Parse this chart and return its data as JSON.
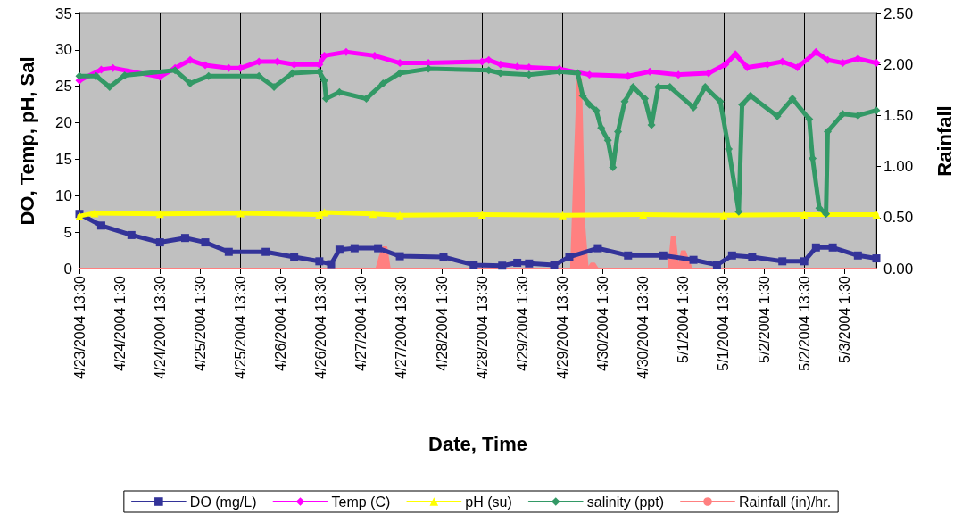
{
  "chart_data": {
    "type": "line",
    "xlabel": "Date, Time",
    "ylabel": "DO, Temp, pH, Sal",
    "y2label": "Rainfall",
    "xlim": [
      "2004-04-23T13:30",
      "2004-05-03T11:00"
    ],
    "xticks": [
      {
        "value": "2004-04-23T13:30",
        "label": "4/23/2004 13:30"
      },
      {
        "value": "2004-04-24T01:30",
        "label": "4/24/2004 1:30"
      },
      {
        "value": "2004-04-24T13:30",
        "label": "4/24/2004 13:30"
      },
      {
        "value": "2004-04-25T01:30",
        "label": "4/25/2004 1:30"
      },
      {
        "value": "2004-04-25T13:30",
        "label": "4/25/2004 13:30"
      },
      {
        "value": "2004-04-26T01:30",
        "label": "4/26/2004 1:30"
      },
      {
        "value": "2004-04-26T13:30",
        "label": "4/26/2004 13:30"
      },
      {
        "value": "2004-04-27T01:30",
        "label": "4/27/2004 1:30"
      },
      {
        "value": "2004-04-27T13:30",
        "label": "4/27/2004 13:30"
      },
      {
        "value": "2004-04-28T01:30",
        "label": "4/28/2004 1:30"
      },
      {
        "value": "2004-04-28T13:30",
        "label": "4/28/2004 13:30"
      },
      {
        "value": "2004-04-29T01:30",
        "label": "4/29/2004 1:30"
      },
      {
        "value": "2004-04-29T13:30",
        "label": "4/29/2004 13:30"
      },
      {
        "value": "2004-04-30T01:30",
        "label": "4/30/2004 1:30"
      },
      {
        "value": "2004-04-30T13:30",
        "label": "4/30/2004 13:30"
      },
      {
        "value": "2004-05-01T01:30",
        "label": "5/1/2004 1:30"
      },
      {
        "value": "2004-05-01T13:30",
        "label": "5/1/2004 13:30"
      },
      {
        "value": "2004-05-02T01:30",
        "label": "5/2/2004 1:30"
      },
      {
        "value": "2004-05-02T13:30",
        "label": "5/2/2004 13:30"
      },
      {
        "value": "2004-05-03T01:30",
        "label": "5/3/2004 1:30"
      }
    ],
    "ylim": [
      0,
      35
    ],
    "yticks": [
      0,
      5,
      10,
      15,
      20,
      25,
      30,
      35
    ],
    "y2lim": [
      0,
      2.5
    ],
    "y2ticks": [
      {
        "value": 0,
        "label": "0.00"
      },
      {
        "value": 0.5,
        "label": "0.50"
      },
      {
        "value": 1,
        "label": "1.00"
      },
      {
        "value": 1.5,
        "label": "1.50"
      },
      {
        "value": 2,
        "label": "2.00"
      },
      {
        "value": 2.5,
        "label": "2.50"
      }
    ],
    "grid": "x",
    "legend": "bottom",
    "series": [
      {
        "name": "DO (mg/L)",
        "color": "#333399",
        "marker": "square",
        "x": [
          "2004-04-23T13:30",
          "2004-04-23T20:00",
          "2004-04-24T05:00",
          "2004-04-24T13:30",
          "2004-04-24T21:00",
          "2004-04-25T03:00",
          "2004-04-25T10:00",
          "2004-04-25T21:00",
          "2004-04-26T05:30",
          "2004-04-26T13:00",
          "2004-04-26T16:30",
          "2004-04-26T19:00",
          "2004-04-26T23:30",
          "2004-04-27T06:30",
          "2004-04-27T13:00",
          "2004-04-28T02:00",
          "2004-04-28T11:00",
          "2004-04-28T19:30",
          "2004-04-29T00:00",
          "2004-04-29T03:30",
          "2004-04-29T11:00",
          "2004-04-29T15:30",
          "2004-04-30T00:00",
          "2004-04-30T09:00",
          "2004-04-30T19:30",
          "2004-05-01T04:30",
          "2004-05-01T11:30",
          "2004-05-01T16:00",
          "2004-05-01T22:00",
          "2004-05-02T07:00",
          "2004-05-02T13:30",
          "2004-05-02T17:00",
          "2004-05-02T22:00",
          "2004-05-03T05:30",
          "2004-05-03T11:00"
        ],
        "values": [
          7.5,
          5.9,
          4.6,
          3.6,
          4.2,
          3.6,
          2.3,
          2.3,
          1.6,
          1.0,
          0.6,
          2.6,
          2.8,
          2.8,
          1.7,
          1.6,
          0.5,
          0.4,
          0.8,
          0.7,
          0.5,
          1.6,
          2.8,
          1.8,
          1.8,
          1.2,
          0.5,
          1.8,
          1.6,
          1.0,
          1.0,
          2.9,
          2.9,
          1.8,
          1.4
        ]
      },
      {
        "name": "Temp (C)",
        "color": "#ff00ff",
        "marker": "diamond",
        "x": [
          "2004-04-23T13:30",
          "2004-04-23T20:00",
          "2004-04-23T23:30",
          "2004-04-24T13:30",
          "2004-04-24T18:00",
          "2004-04-24T22:30",
          "2004-04-25T03:00",
          "2004-04-25T10:00",
          "2004-04-25T13:30",
          "2004-04-25T19:00",
          "2004-04-26T00:30",
          "2004-04-26T05:30",
          "2004-04-26T13:00",
          "2004-04-26T14:30",
          "2004-04-26T21:00",
          "2004-04-27T05:30",
          "2004-04-27T13:00",
          "2004-04-27T21:30",
          "2004-04-28T13:30",
          "2004-04-28T15:30",
          "2004-04-28T19:00",
          "2004-04-29T00:00",
          "2004-04-29T03:30",
          "2004-04-29T12:30",
          "2004-04-29T21:30",
          "2004-04-30T09:00",
          "2004-04-30T15:30",
          "2004-05-01T00:00",
          "2004-05-01T09:00",
          "2004-05-01T14:00",
          "2004-05-01T17:00",
          "2004-05-01T20:30",
          "2004-05-02T02:30",
          "2004-05-02T07:00",
          "2004-05-02T11:30",
          "2004-05-02T17:00",
          "2004-05-02T20:30",
          "2004-05-03T01:00",
          "2004-05-03T05:30",
          "2004-05-03T11:00"
        ],
        "values": [
          25.8,
          27.3,
          27.5,
          26.3,
          27.5,
          28.6,
          27.9,
          27.5,
          27.5,
          28.4,
          28.4,
          28.0,
          28.0,
          29.2,
          29.7,
          29.2,
          28.2,
          28.2,
          28.4,
          28.6,
          28.0,
          27.7,
          27.6,
          27.4,
          26.6,
          26.4,
          27.0,
          26.6,
          26.8,
          28.0,
          29.4,
          27.6,
          28.0,
          28.4,
          27.6,
          29.7,
          28.6,
          28.2,
          28.8,
          28.2
        ]
      },
      {
        "name": "pH (su)",
        "color": "#ffff00",
        "marker": "triangle",
        "x": [
          "2004-04-23T13:30",
          "2004-04-23T18:00",
          "2004-04-24T13:30",
          "2004-04-25T13:30",
          "2004-04-26T13:00",
          "2004-04-26T14:30",
          "2004-04-27T05:00",
          "2004-04-27T13:00",
          "2004-04-28T13:30",
          "2004-04-29T13:30",
          "2004-04-30T13:30",
          "2004-05-01T13:30",
          "2004-05-02T13:30",
          "2004-05-03T11:00"
        ],
        "values": [
          7.2,
          7.6,
          7.5,
          7.6,
          7.4,
          7.7,
          7.5,
          7.3,
          7.4,
          7.3,
          7.4,
          7.3,
          7.4,
          7.4
        ]
      },
      {
        "name": "salinity (ppt)",
        "color": "#339966",
        "marker": "diamond",
        "x": [
          "2004-04-23T13:30",
          "2004-04-23T18:30",
          "2004-04-23T22:30",
          "2004-04-24T03:00",
          "2004-04-24T18:00",
          "2004-04-24T22:30",
          "2004-04-25T04:00",
          "2004-04-25T19:00",
          "2004-04-25T23:30",
          "2004-04-26T05:00",
          "2004-04-26T13:00",
          "2004-04-26T14:30",
          "2004-04-26T15:00",
          "2004-04-26T19:00",
          "2004-04-27T03:00",
          "2004-04-27T08:00",
          "2004-04-27T13:00",
          "2004-04-27T21:30",
          "2004-04-28T15:30",
          "2004-04-28T19:00",
          "2004-04-29T03:30",
          "2004-04-29T12:30",
          "2004-04-29T18:00",
          "2004-04-29T19:30",
          "2004-04-29T21:30",
          "2004-04-29T23:30",
          "2004-04-30T01:00",
          "2004-04-30T03:00",
          "2004-04-30T04:30",
          "2004-04-30T06:00",
          "2004-04-30T08:00",
          "2004-04-30T10:30",
          "2004-04-30T14:00",
          "2004-04-30T16:00",
          "2004-04-30T18:00",
          "2004-04-30T21:30",
          "2004-05-01T04:30",
          "2004-05-01T08:00",
          "2004-05-01T12:30",
          "2004-05-01T15:00",
          "2004-05-01T18:00",
          "2004-05-01T19:00",
          "2004-05-01T21:30",
          "2004-05-02T05:30",
          "2004-05-02T10:00",
          "2004-05-02T15:00",
          "2004-05-02T16:00",
          "2004-05-02T18:00",
          "2004-05-02T20:00",
          "2004-05-02T20:30",
          "2004-05-03T01:00",
          "2004-05-03T05:30",
          "2004-05-03T11:00"
        ],
        "values": [
          26.4,
          26.4,
          24.9,
          26.5,
          27.2,
          25.4,
          26.4,
          26.4,
          24.9,
          26.8,
          27.0,
          25.8,
          23.3,
          24.2,
          23.3,
          25.4,
          26.8,
          27.4,
          27.2,
          26.8,
          26.6,
          27.0,
          26.8,
          23.7,
          22.5,
          21.7,
          19.3,
          17.6,
          13.9,
          18.8,
          22.9,
          24.9,
          23.3,
          19.7,
          24.9,
          24.9,
          22.1,
          24.9,
          22.9,
          16.4,
          7.8,
          22.5,
          23.7,
          20.9,
          23.3,
          20.5,
          15.1,
          8.3,
          7.5,
          18.8,
          21.2,
          21.0,
          21.7
        ]
      },
      {
        "name": "Rainfall (in)/hr.",
        "color": "#ff8080",
        "type": "area",
        "axis": "y2",
        "marker": "none",
        "x": [
          "2004-04-23T13:30",
          "2004-04-27T06:00",
          "2004-04-27T07:00",
          "2004-04-27T08:00",
          "2004-04-27T09:00",
          "2004-04-27T10:00",
          "2004-04-29T16:00",
          "2004-04-29T17:00",
          "2004-04-29T18:00",
          "2004-04-29T19:00",
          "2004-04-29T20:00",
          "2004-04-29T21:00",
          "2004-04-29T22:00",
          "2004-04-29T23:00",
          "2004-04-30T00:00",
          "2004-04-30T21:00",
          "2004-04-30T22:00",
          "2004-04-30T23:00",
          "2004-05-01T00:00",
          "2004-05-01T01:00",
          "2004-05-01T02:00",
          "2004-05-01T03:00",
          "2004-05-01T04:00",
          "2004-05-03T11:00"
        ],
        "values": [
          0,
          0,
          0.12,
          0.21,
          0.21,
          0,
          0,
          0.97,
          1.86,
          1.86,
          0.42,
          0,
          0.05,
          0.05,
          0,
          0,
          0.31,
          0.31,
          0,
          0.17,
          0.17,
          0.08,
          0,
          0
        ]
      }
    ]
  }
}
